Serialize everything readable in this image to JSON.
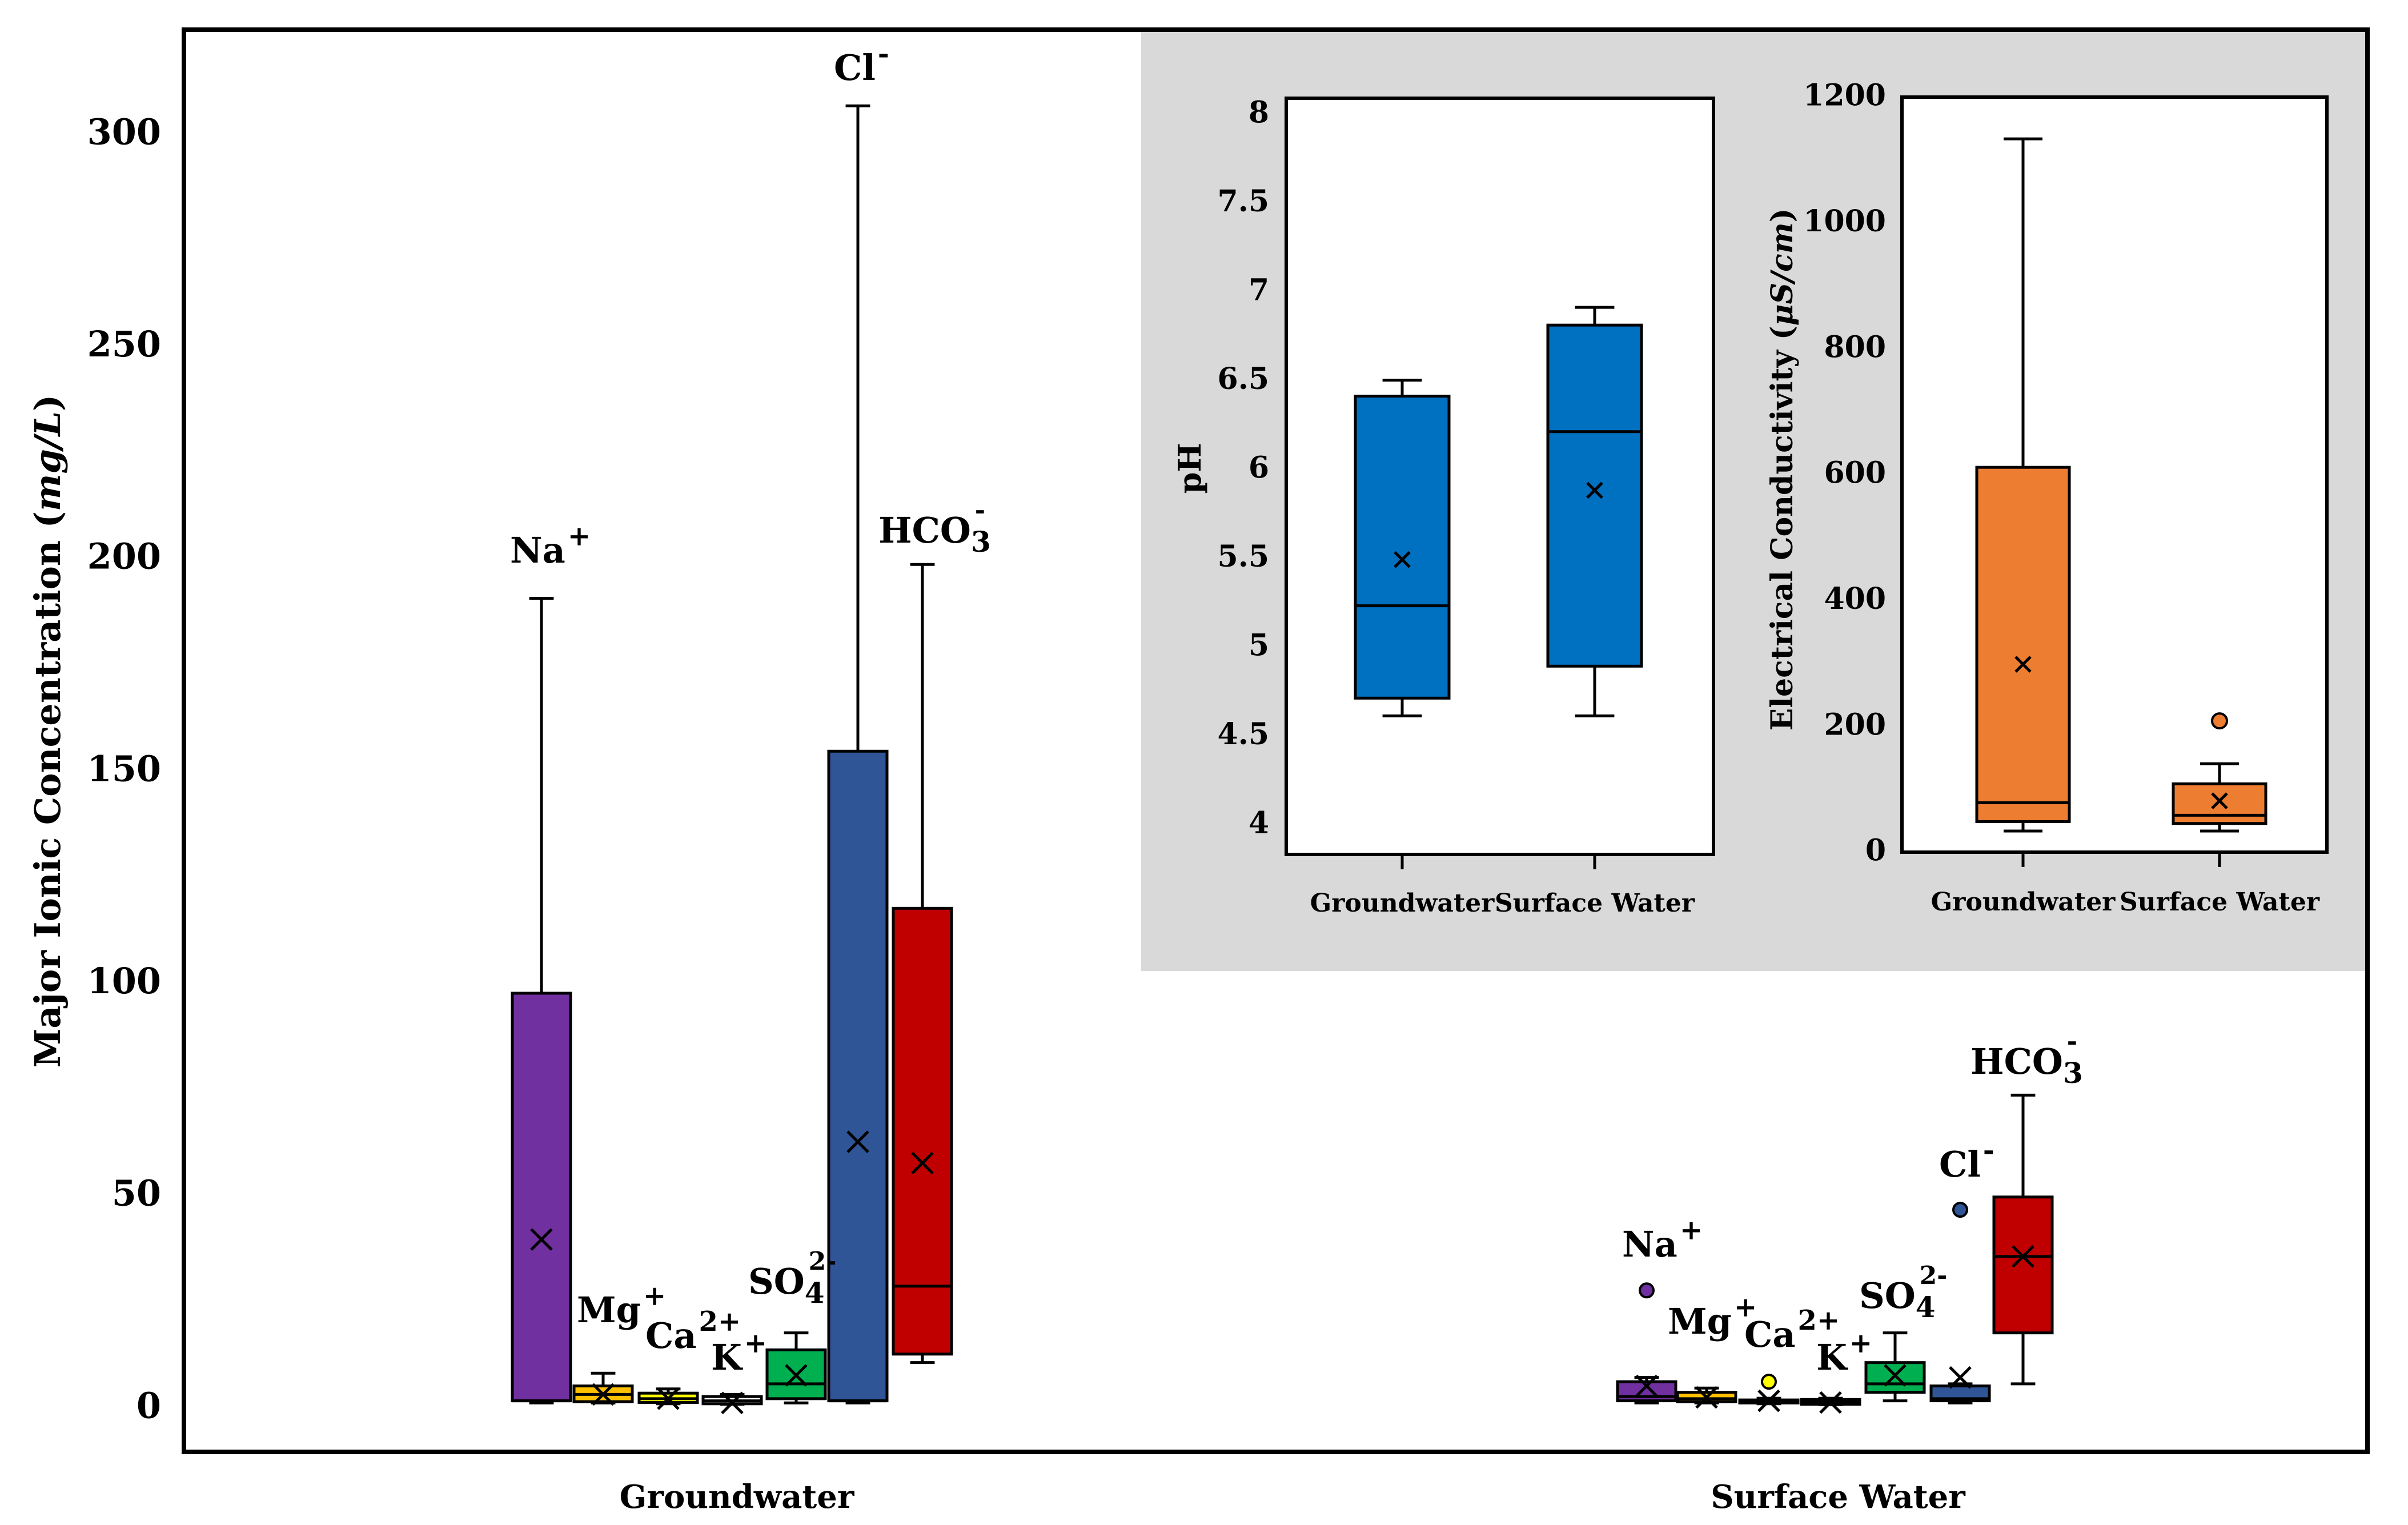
{
  "chart_data": [
    {
      "type": "boxplot",
      "title": "",
      "ylabel": "Major Ionic Concentration",
      "ylabel_unit": "mg/L",
      "ylim": [
        -10,
        322
      ],
      "yticks": [
        0,
        50,
        100,
        150,
        200,
        250,
        300
      ],
      "groups": [
        "Groundwater",
        "Surface Water"
      ],
      "series": [
        {
          "name": "Na+",
          "base": "Na",
          "charge": "+",
          "sub": "",
          "color": "#7030A0",
          "stats": [
            {
              "min": 0.5,
              "q1": 1,
              "median": 1,
              "q3": 97,
              "max": 190,
              "mean": 39,
              "outliers": []
            },
            {
              "min": 0.5,
              "q1": 1,
              "median": 2,
              "q3": 5.5,
              "max": 6.5,
              "mean": 4.5,
              "outliers": [
                27
              ]
            }
          ]
        },
        {
          "name": "Mg+",
          "base": "Mg",
          "charge": "+",
          "sub": "",
          "color": "#FFC000",
          "stats": [
            {
              "min": 0.5,
              "q1": 0.8,
              "median": 2.5,
              "q3": 4.5,
              "max": 7.5,
              "mean": 2.5,
              "outliers": []
            },
            {
              "min": 0.5,
              "q1": 0.8,
              "median": 1.5,
              "q3": 3,
              "max": 4,
              "mean": 1.8,
              "outliers": []
            }
          ]
        },
        {
          "name": "Ca2+",
          "base": "Ca",
          "charge": "2+",
          "sub": "",
          "color": "#FFFF00",
          "stats": [
            {
              "min": 0.3,
              "q1": 0.6,
              "median": 1.5,
              "q3": 2.8,
              "max": 3.8,
              "mean": 1.5,
              "outliers": []
            },
            {
              "min": 0.3,
              "q1": 0.5,
              "median": 0.8,
              "q3": 1.2,
              "max": 1.6,
              "mean": 1,
              "outliers": [
                5.5
              ]
            }
          ]
        },
        {
          "name": "K+",
          "base": "K",
          "charge": "+",
          "sub": "",
          "color": "#FFFFFF",
          "stats": [
            {
              "min": 0.2,
              "q1": 0.3,
              "median": 1,
              "q3": 2,
              "max": 2.5,
              "mean": 0.5,
              "outliers": []
            },
            {
              "min": 0.1,
              "q1": 0.2,
              "median": 0.8,
              "q3": 1.3,
              "max": 1.6,
              "mean": 0.6,
              "outliers": []
            }
          ]
        },
        {
          "name": "SO42-",
          "base": "SO",
          "charge": "2-",
          "sub": "4",
          "color": "#00B050",
          "stats": [
            {
              "min": 0.5,
              "q1": 1.5,
              "median": 5,
              "q3": 13,
              "max": 17,
              "mean": 7,
              "outliers": []
            },
            {
              "min": 1,
              "q1": 3,
              "median": 5,
              "q3": 10,
              "max": 17,
              "mean": 7,
              "outliers": []
            }
          ]
        },
        {
          "name": "Cl-",
          "base": "Cl",
          "charge": "-",
          "sub": "",
          "color": "#2F5597",
          "stats": [
            {
              "min": 0.5,
              "q1": 1,
              "median": 1,
              "q3": 154,
              "max": 306,
              "mean": 62,
              "outliers": []
            },
            {
              "min": 0.5,
              "q1": 1,
              "median": 1.5,
              "q3": 4.5,
              "max": 5,
              "mean": 6.5,
              "outliers": [
                46
              ]
            }
          ]
        },
        {
          "name": "HCO3-",
          "base": "HCO",
          "charge": "-",
          "sub": "3",
          "color": "#C00000",
          "stats": [
            {
              "min": 10,
              "q1": 12,
              "median": 28,
              "q3": 117,
              "max": 198,
              "mean": 57,
              "outliers": []
            },
            {
              "min": 5,
              "q1": 17,
              "median": 35,
              "q3": 49,
              "max": 73,
              "mean": 35,
              "outliers": []
            }
          ]
        }
      ]
    },
    {
      "type": "boxplot",
      "title": "",
      "ylabel": "pH",
      "ylim": [
        3.85,
        8.1
      ],
      "yticks": [
        4,
        4.5,
        5,
        5.5,
        6,
        6.5,
        7,
        7.5,
        8
      ],
      "categories": [
        "Groundwater",
        "Surface Water"
      ],
      "color": "#0070C0",
      "stats": [
        {
          "min": 4.6,
          "q1": 4.7,
          "median": 5.22,
          "q3": 6.4,
          "max": 6.49,
          "mean": 5.48,
          "outliers": []
        },
        {
          "min": 4.6,
          "q1": 4.88,
          "median": 6.2,
          "q3": 6.8,
          "max": 6.9,
          "mean": 5.87,
          "outliers": []
        }
      ]
    },
    {
      "type": "boxplot",
      "title": "",
      "ylabel": "Electrical Conductivity",
      "ylabel_unit": "μS/cm",
      "ylim": [
        0,
        1200
      ],
      "yticks": [
        0,
        200,
        400,
        600,
        800,
        1000,
        1200
      ],
      "categories": [
        "Groundwater",
        "Surface Water"
      ],
      "color": "#ED7D31",
      "stats": [
        {
          "min": 30,
          "q1": 45,
          "median": 75,
          "q3": 608,
          "max": 1130,
          "mean": 295,
          "outliers": []
        },
        {
          "min": 30,
          "q1": 42,
          "median": 55,
          "q3": 105,
          "max": 137,
          "mean": 78,
          "outliers": [
            205
          ]
        }
      ]
    }
  ]
}
